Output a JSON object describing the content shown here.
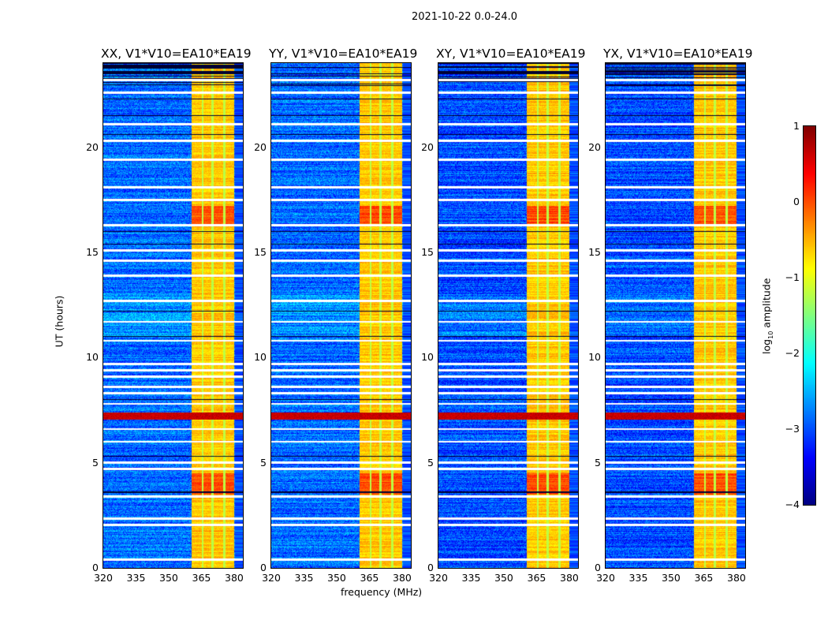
{
  "suptitle": "2021-10-22 0.0-24.0",
  "chart_data": {
    "type": "heatmap",
    "title": "2021-10-22 0.0-24.0",
    "xlabel": "frequency (MHz)",
    "ylabel": "UT (hours)",
    "xlim": [
      320,
      384
    ],
    "ylim": [
      0,
      24
    ],
    "xticks": [
      "320",
      "335",
      "350",
      "365",
      "380"
    ],
    "xtick_values": [
      320,
      335,
      350,
      365,
      380
    ],
    "yticks": [
      "0",
      "5",
      "10",
      "15",
      "20"
    ],
    "ytick_values": [
      0,
      5,
      10,
      15,
      20
    ],
    "panels": [
      {
        "title": "XX, V1*V10=EA10*EA19"
      },
      {
        "title": "YY, V1*V10=EA10*EA19"
      },
      {
        "title": "XY, V1*V10=EA10*EA19"
      },
      {
        "title": "YX, V1*V10=EA10*EA19"
      }
    ],
    "background_level": -3.0,
    "bright_band_mhz": [
      360.5,
      380
    ],
    "bright_band_level": -0.6,
    "band_gaps_mhz": [
      365.5,
      370,
      375.5
    ],
    "flagged_hours_white": [
      0.4,
      2.05,
      2.35,
      3.4,
      4.7,
      5.0,
      6.0,
      6.6,
      7.8,
      8.3,
      8.6,
      9.1,
      9.4,
      9.7,
      10.8,
      11.7,
      12.7,
      13.9,
      14.6,
      15.1,
      16.3,
      17.5,
      18.1,
      19.4,
      20.3,
      21.1,
      22.6,
      23.2
    ],
    "flagged_hours_black": [
      3.6,
      5.3,
      8.0,
      11.0,
      12.2,
      15.4,
      16.0,
      20.6,
      21.5,
      22.3,
      23.5,
      23.8
    ],
    "strong_rfi_hours": [
      7.05,
      7.4
    ],
    "colorbar": {
      "label": "log10 amplitude",
      "range": [
        -4,
        1
      ],
      "ticks": [
        "1",
        "0",
        "−1",
        "−2",
        "−3",
        "−4"
      ],
      "tick_values": [
        1,
        0,
        -1,
        -2,
        -3,
        -4
      ],
      "colormap": "jet"
    }
  }
}
